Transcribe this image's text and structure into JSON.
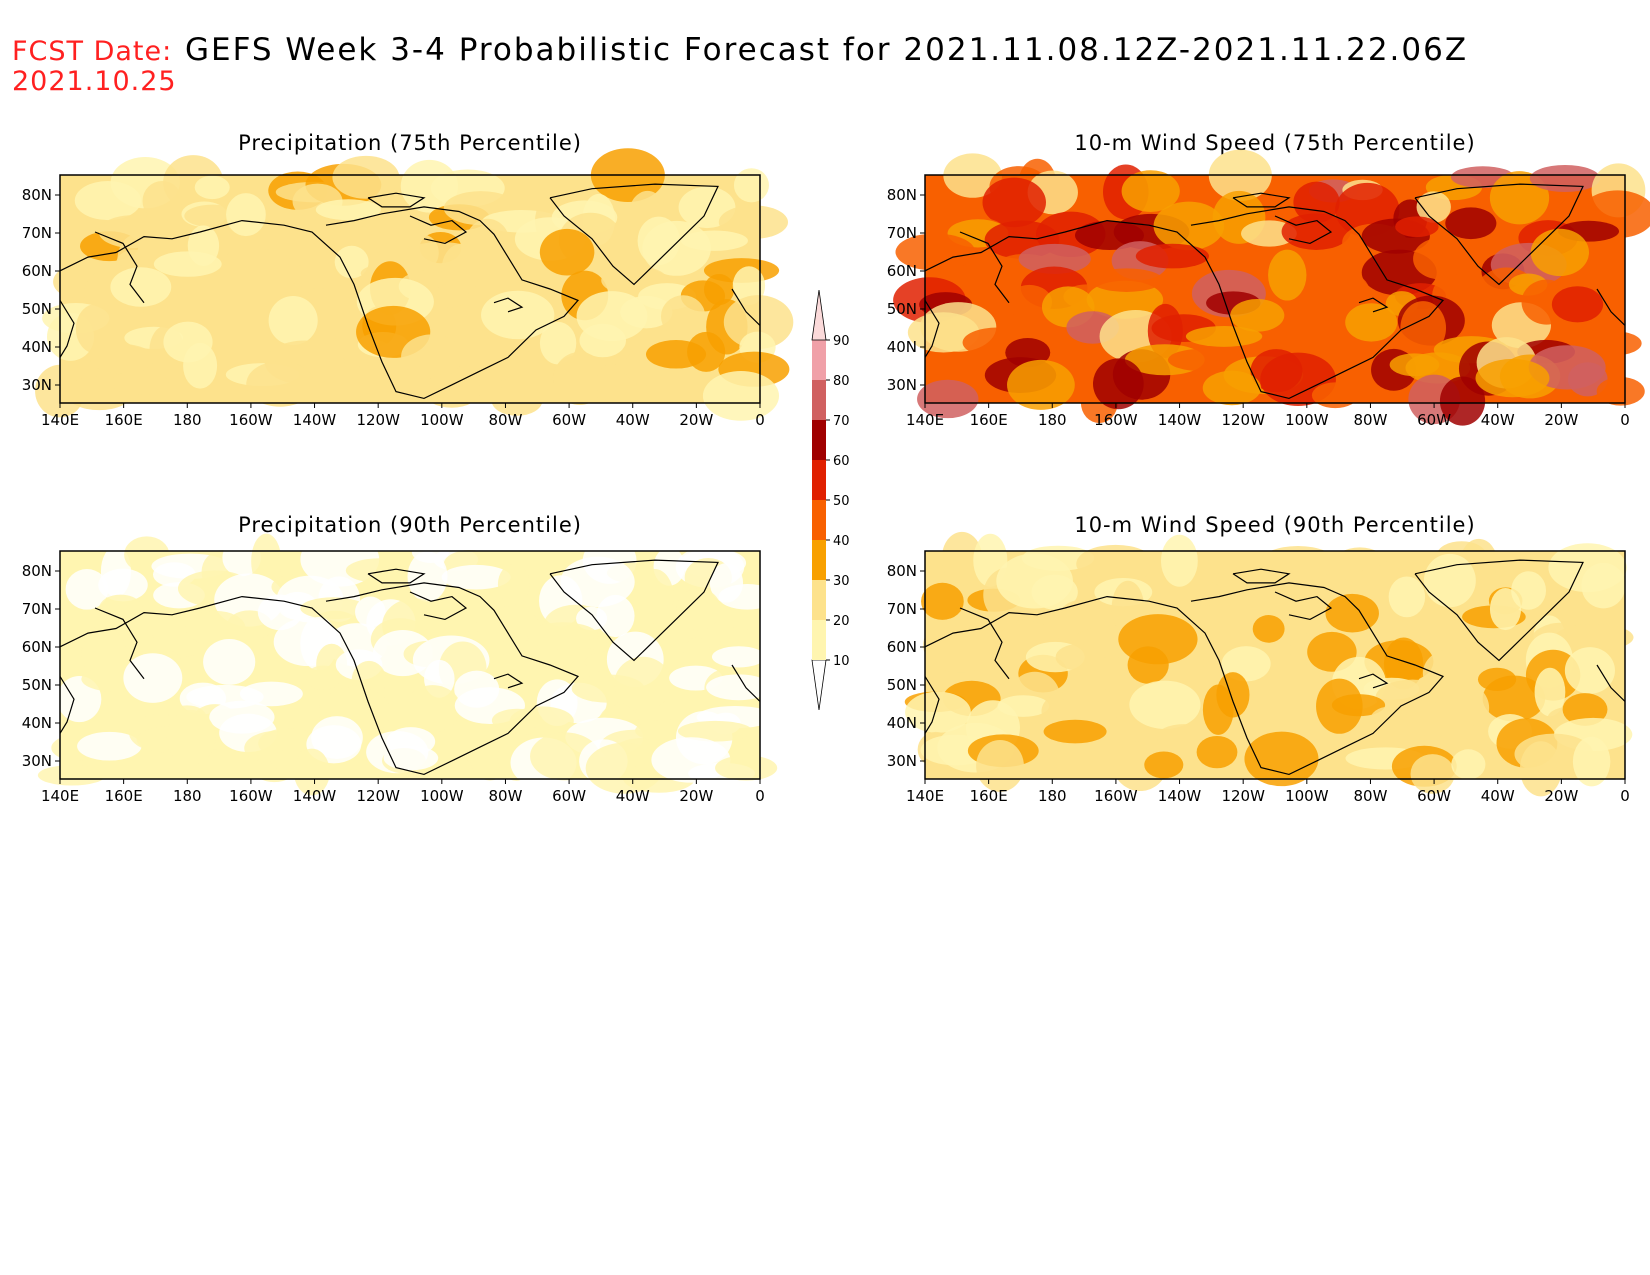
{
  "header": {
    "fcst_label": "FCST Date:",
    "fcst_date": "2021.10.25",
    "title": "GEFS Week 3-4 Probabilistic Forecast for 2021.11.08.12Z-2021.11.22.06Z"
  },
  "axes": {
    "lon_ticks": [
      "140E",
      "160E",
      "180",
      "160W",
      "140W",
      "120W",
      "100W",
      "80W",
      "60W",
      "40W",
      "20W",
      "0"
    ],
    "lat_ticks": [
      "80N",
      "70N",
      "60N",
      "50N",
      "40N",
      "30N"
    ]
  },
  "panels": [
    {
      "title": "Precipitation (75th Percentile)",
      "intensity": 0.45
    },
    {
      "title": "10-m Wind Speed (75th Percentile)",
      "intensity": 1.0
    },
    {
      "title": "Precipitation (90th Percentile)",
      "intensity": 0.22
    },
    {
      "title": "10-m Wind Speed (90th Percentile)",
      "intensity": 0.5
    }
  ],
  "colorbar": {
    "levels": [
      "10",
      "20",
      "30",
      "40",
      "50",
      "60",
      "70",
      "80",
      "90"
    ],
    "colors": [
      "#ffffff",
      "#fff5b0",
      "#fde28c",
      "#f8a000",
      "#f86000",
      "#e02000",
      "#a00000",
      "#d06060",
      "#f0a0a8",
      "#fbdada"
    ]
  }
}
